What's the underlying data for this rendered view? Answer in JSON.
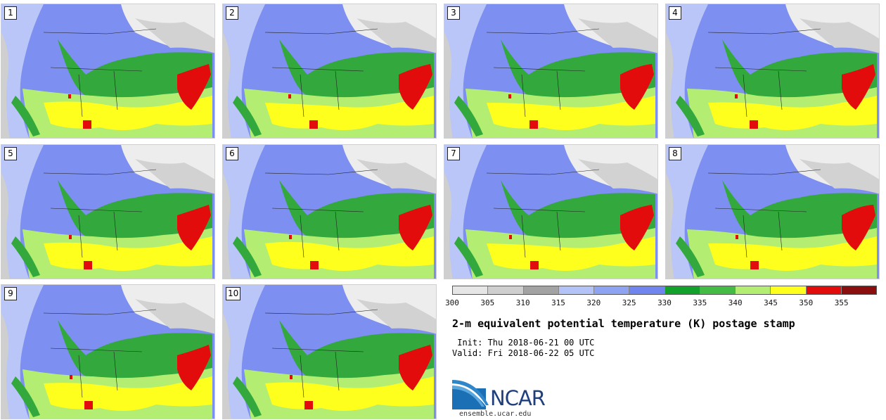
{
  "panels": [
    {
      "label": "1"
    },
    {
      "label": "2"
    },
    {
      "label": "3"
    },
    {
      "label": "4"
    },
    {
      "label": "5"
    },
    {
      "label": "6"
    },
    {
      "label": "7"
    },
    {
      "label": "8"
    },
    {
      "label": "9"
    },
    {
      "label": "10"
    }
  ],
  "colorbar": {
    "colors": [
      "#e6e6e6",
      "#cfcfcf",
      "#a3a3a3",
      "#b4c3f7",
      "#8ea3f2",
      "#7086ee",
      "#12a12a",
      "#44bb44",
      "#b3ee72",
      "#ffff1e",
      "#e30c0c",
      "#8b0e0e"
    ],
    "ticks": [
      "300",
      "305",
      "310",
      "315",
      "320",
      "325",
      "330",
      "335",
      "340",
      "345",
      "350",
      "355"
    ]
  },
  "title": "2-m equivalent potential temperature (K) postage stamp",
  "init": " Init: Thu 2018-06-21 00 UTC",
  "valid": "Valid: Fri 2018-06-22 05 UTC",
  "logo": {
    "text": "NCAR",
    "url": "ensemble.ucar.edu"
  }
}
